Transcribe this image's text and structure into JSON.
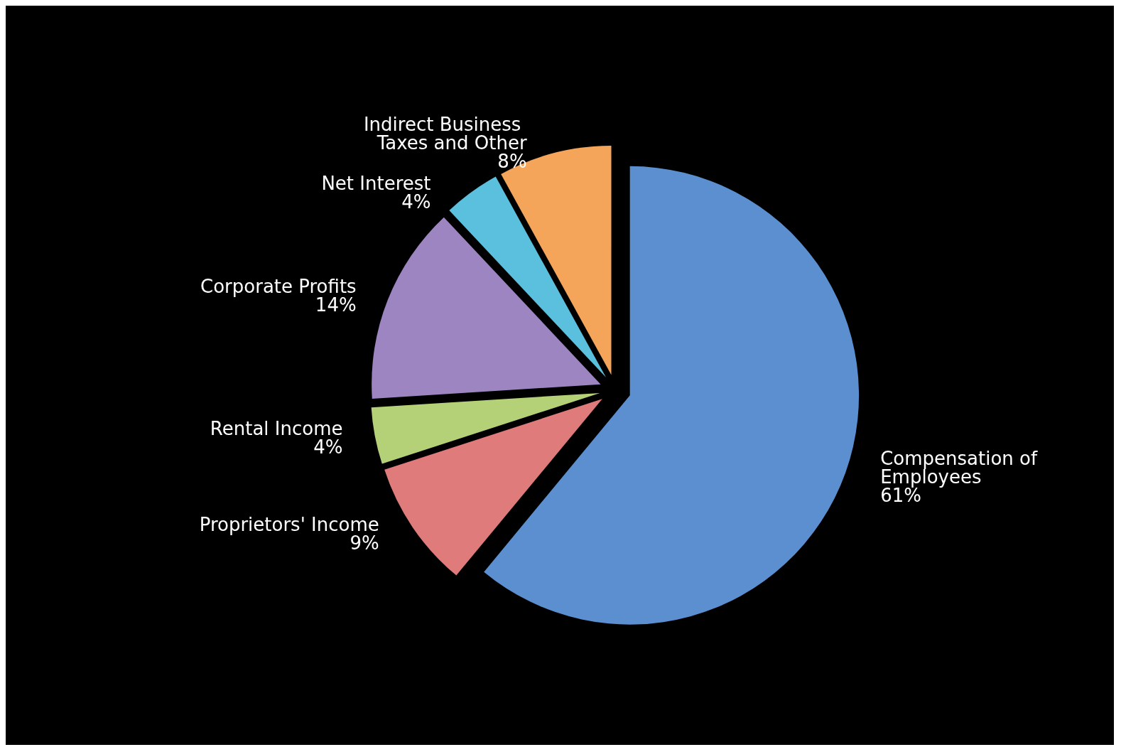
{
  "chart_data": {
    "type": "pie",
    "categories": [
      "Compensation of Employees",
      "Proprietors' Income",
      "Rental Income",
      "Corporate Profits",
      "Net Interest",
      "Indirect Business Taxes and Other"
    ],
    "values": [
      61,
      9,
      4,
      14,
      4,
      8
    ],
    "colors": [
      "#5b8fd0",
      "#e07b7b",
      "#b5d178",
      "#9c85c0",
      "#5bc0de",
      "#f5a55a"
    ],
    "value_labels": [
      "61%",
      "9%",
      "4%",
      "14%",
      "4%",
      "8%"
    ],
    "legend": false
  }
}
